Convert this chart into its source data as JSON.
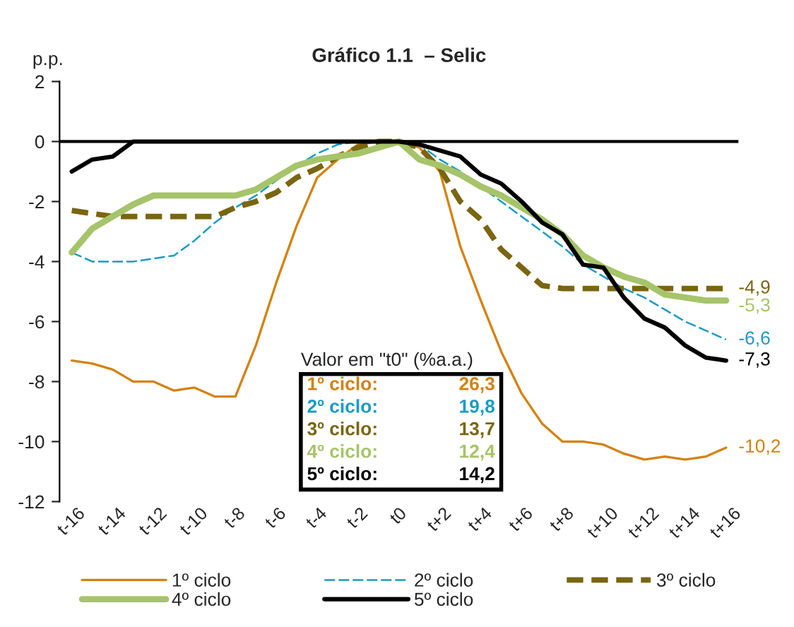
{
  "chart_data": {
    "type": "line",
    "title": "Gráfico 1.1  – Selic",
    "ylabel": "p.p.",
    "categories": [
      "t-16",
      null,
      "t-14",
      null,
      "t-12",
      null,
      "t-10",
      null,
      "t-8",
      null,
      "t-6",
      null,
      "t-4",
      null,
      "t-2",
      null,
      "t0",
      null,
      "t+2",
      null,
      "t+4",
      null,
      "t+6",
      null,
      "t+8",
      null,
      "t+10",
      null,
      "t+12",
      null,
      "t+14",
      null,
      "t+16"
    ],
    "series": [
      {
        "name": "1º ciclo",
        "color": "#d4820f",
        "line_style": "solid",
        "values": [
          -7.3,
          -7.4,
          -7.6,
          -8.0,
          -8.0,
          -8.3,
          -8.2,
          -8.5,
          -8.5,
          -6.8,
          -4.7,
          -2.8,
          -1.2,
          -0.6,
          -0.1,
          0,
          0,
          -0.2,
          -1.0,
          -3.5,
          -5.3,
          -7.0,
          -8.4,
          -9.4,
          -10.0,
          -10.0,
          -10.1,
          -10.4,
          -10.6,
          -10.5,
          -10.6,
          -10.5,
          -10.2
        ],
        "value_labels": [
          null,
          null,
          null,
          null,
          null,
          null,
          null,
          null,
          null,
          null,
          null,
          null,
          null,
          null,
          null,
          null,
          null,
          null,
          null,
          null,
          null,
          null,
          null,
          null,
          null,
          null,
          null,
          null,
          null,
          null,
          null,
          null,
          "-10,2"
        ]
      },
      {
        "name": "2º ciclo",
        "color": "#1a9bc4",
        "line_style": "dashed",
        "values": [
          -3.7,
          -4.0,
          -4.0,
          -4.0,
          -3.9,
          -3.8,
          -3.3,
          -2.7,
          -2.2,
          -1.8,
          -1.3,
          -0.8,
          -0.4,
          -0.1,
          0,
          0,
          0,
          -0.1,
          -0.6,
          -1.0,
          -1.5,
          -2.0,
          -2.5,
          -3.0,
          -3.5,
          -4.1,
          -4.5,
          -4.9,
          -5.2,
          -5.6,
          -6.0,
          -6.3,
          -6.6
        ],
        "value_labels": [
          null,
          null,
          null,
          null,
          null,
          null,
          null,
          null,
          null,
          null,
          null,
          null,
          null,
          null,
          null,
          null,
          null,
          null,
          null,
          null,
          null,
          null,
          null,
          null,
          null,
          null,
          null,
          null,
          null,
          null,
          null,
          null,
          "-6,6"
        ]
      },
      {
        "name": "3º ciclo",
        "color": "#7a6510",
        "line_style": "dashed",
        "values": [
          -2.3,
          -2.4,
          -2.5,
          -2.5,
          -2.5,
          -2.5,
          -2.5,
          -2.5,
          -2.2,
          -2.0,
          -1.7,
          -1.2,
          -0.9,
          -0.5,
          -0.2,
          0,
          0,
          -0.2,
          -0.9,
          -2.0,
          -2.6,
          -3.6,
          -4.2,
          -4.8,
          -4.9,
          -4.9,
          -4.9,
          -4.9,
          -4.9,
          -4.9,
          -4.9,
          -4.9,
          -4.9
        ],
        "value_labels": [
          null,
          null,
          null,
          null,
          null,
          null,
          null,
          null,
          null,
          null,
          null,
          null,
          null,
          null,
          null,
          null,
          null,
          null,
          null,
          null,
          null,
          null,
          null,
          null,
          null,
          null,
          null,
          null,
          null,
          null,
          null,
          null,
          "-4,9"
        ]
      },
      {
        "name": "4º ciclo",
        "color": "#a6c46a",
        "line_style": "solid",
        "values": [
          -3.7,
          -2.9,
          -2.5,
          -2.1,
          -1.8,
          -1.8,
          -1.8,
          -1.8,
          -1.8,
          -1.6,
          -1.2,
          -0.8,
          -0.6,
          -0.5,
          -0.4,
          -0.2,
          0,
          -0.6,
          -0.8,
          -1.1,
          -1.5,
          -1.8,
          -2.2,
          -2.6,
          -3.1,
          -3.8,
          -4.2,
          -4.5,
          -4.7,
          -5.1,
          -5.2,
          -5.3,
          -5.3
        ],
        "value_labels": [
          null,
          null,
          null,
          null,
          null,
          null,
          null,
          null,
          null,
          null,
          null,
          null,
          null,
          null,
          null,
          null,
          null,
          null,
          null,
          null,
          null,
          null,
          null,
          null,
          null,
          null,
          null,
          null,
          null,
          null,
          null,
          null,
          "-5,3"
        ]
      },
      {
        "name": "5º ciclo",
        "color": "#000000",
        "line_style": "solid",
        "values": [
          -1.0,
          -0.6,
          -0.5,
          0,
          0,
          0,
          0,
          0,
          0,
          0,
          0,
          0,
          0,
          0,
          0,
          0,
          0,
          -0.1,
          -0.3,
          -0.5,
          -1.1,
          -1.4,
          -2.0,
          -2.7,
          -3.1,
          -4.1,
          -4.2,
          -5.2,
          -5.9,
          -6.2,
          -6.8,
          -7.2,
          -7.3
        ],
        "value_labels": [
          null,
          null,
          null,
          null,
          null,
          null,
          null,
          null,
          null,
          null,
          null,
          null,
          null,
          null,
          null,
          null,
          null,
          null,
          null,
          null,
          null,
          null,
          null,
          null,
          null,
          null,
          null,
          null,
          null,
          null,
          null,
          null,
          "-7,3"
        ]
      }
    ],
    "ylim": [
      -12,
      2
    ],
    "yticks": [
      -12,
      -10,
      -8,
      -6,
      -4,
      -2,
      0,
      2
    ],
    "ref_lines": [
      {
        "axis": "y",
        "value": 0,
        "color": "#000000"
      }
    ],
    "annotations": [
      "Valor em \"t0\" (%a.a.)",
      "1º ciclo:",
      "26,3",
      "2º ciclo:",
      "19,8",
      "3º ciclo:",
      "13,7",
      "4º ciclo:",
      "12,4",
      "5º ciclo:",
      "14,2"
    ],
    "legend": "bottom",
    "grid": false,
    "marker": "none"
  }
}
